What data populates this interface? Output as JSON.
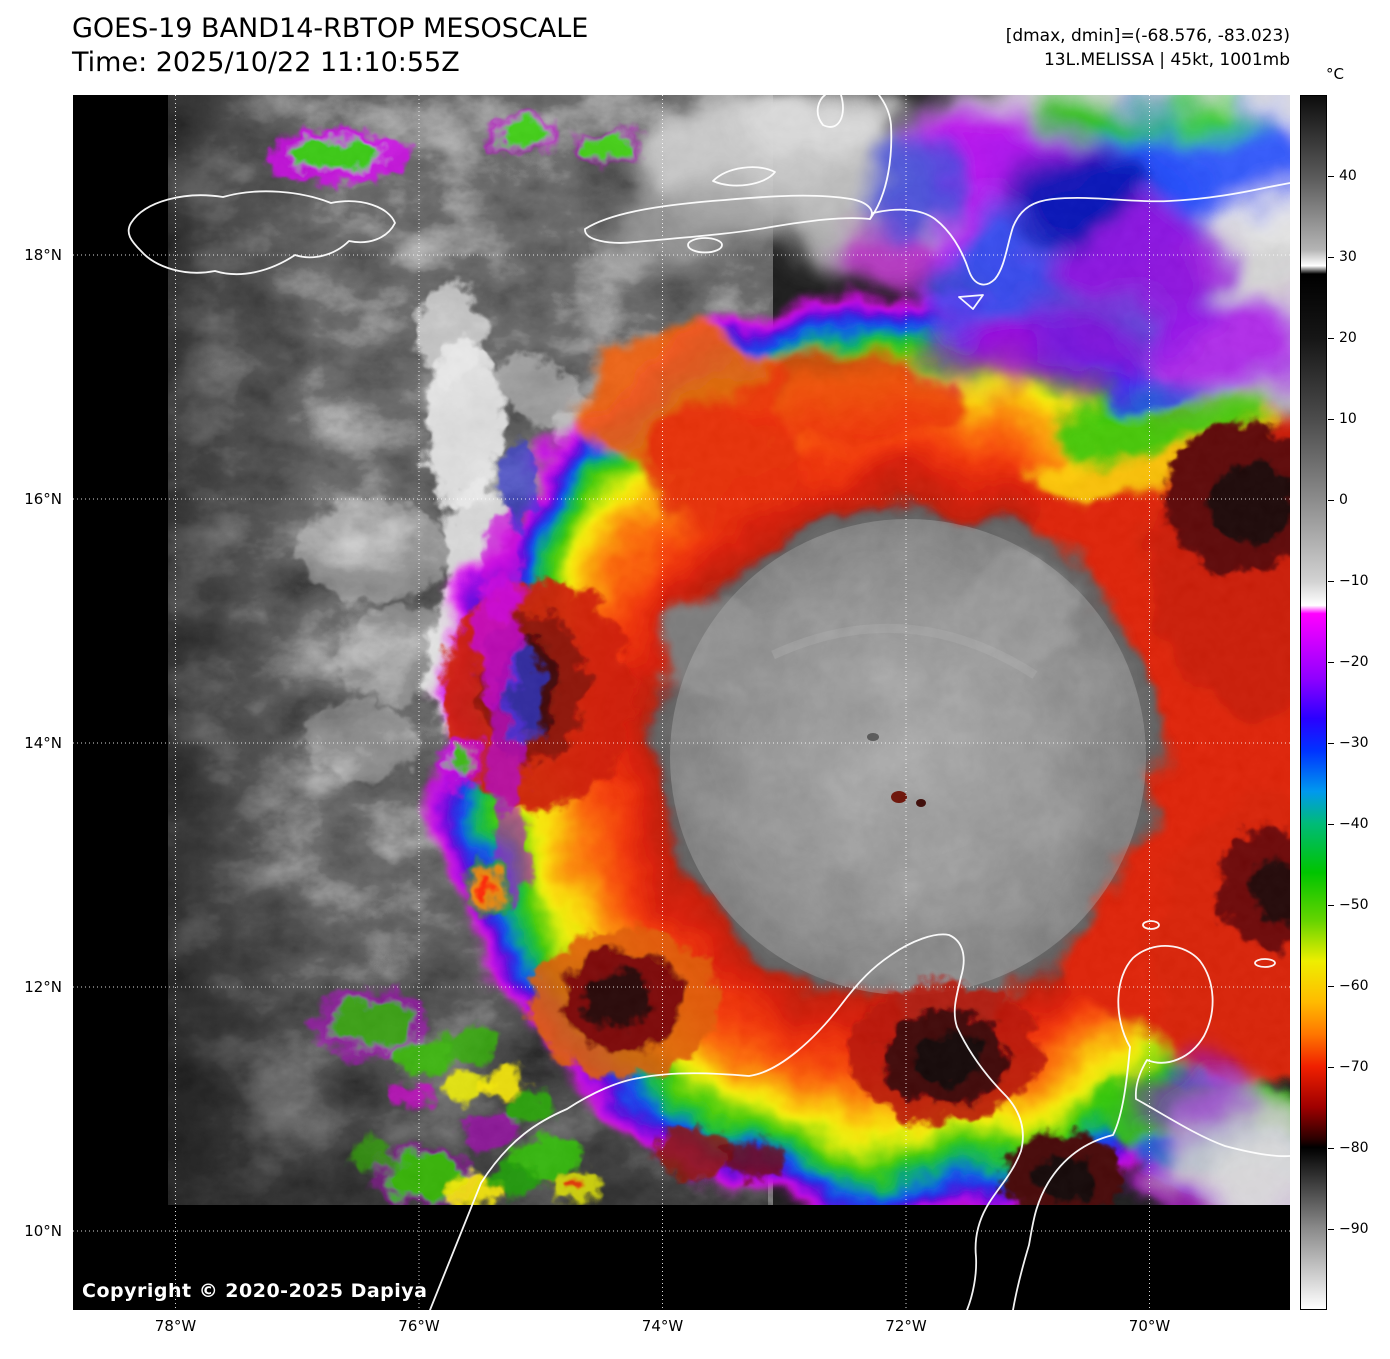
{
  "header": {
    "title": "GOES-19 BAND14-RBTOP MESOSCALE",
    "time": "Time: 2025/10/22 11:10:55Z",
    "dmax_dmin": "[dmax, dmin]=(-68.576, -83.023)",
    "storm_line": "13L.MELISSA | 45kt, 1001mb"
  },
  "watermark": "Copyright © 2020-2025 Dapiya",
  "axes": {
    "lats": [
      {
        "label": "18°N",
        "value": 18
      },
      {
        "label": "16°N",
        "value": 16
      },
      {
        "label": "14°N",
        "value": 14
      },
      {
        "label": "12°N",
        "value": 12
      },
      {
        "label": "10°N",
        "value": 10
      }
    ],
    "lons": [
      {
        "label": "78°W",
        "value": 78
      },
      {
        "label": "76°W",
        "value": 76
      },
      {
        "label": "74°W",
        "value": 74
      },
      {
        "label": "72°W",
        "value": 72
      },
      {
        "label": "70°W",
        "value": 70
      }
    ]
  },
  "colorbar": {
    "unit": "°C",
    "range_c": [
      50,
      -100
    ],
    "ticks": [
      {
        "label": "40",
        "value": 40
      },
      {
        "label": "30",
        "value": 30
      },
      {
        "label": "20",
        "value": 20
      },
      {
        "label": "10",
        "value": 10
      },
      {
        "label": "0",
        "value": 0
      },
      {
        "label": "−10",
        "value": -10
      },
      {
        "label": "−20",
        "value": -20
      },
      {
        "label": "−30",
        "value": -30
      },
      {
        "label": "−40",
        "value": -40
      },
      {
        "label": "−50",
        "value": -50
      },
      {
        "label": "−60",
        "value": -60
      },
      {
        "label": "−70",
        "value": -70
      },
      {
        "label": "−80",
        "value": -80
      },
      {
        "label": "−90",
        "value": -90
      }
    ],
    "stops": [
      {
        "temp": 50,
        "color": "#0d0d0d"
      },
      {
        "temp": 40,
        "color": "#5a5a5a"
      },
      {
        "temp": 31,
        "color": "#b4b4b4"
      },
      {
        "temp": 29,
        "color": "#ffffff"
      },
      {
        "temp": 28,
        "color": "#000000"
      },
      {
        "temp": 20,
        "color": "#161616"
      },
      {
        "temp": 10,
        "color": "#4c4c4c"
      },
      {
        "temp": 0,
        "color": "#8c8c8c"
      },
      {
        "temp": -10,
        "color": "#d2d2d2"
      },
      {
        "temp": -13,
        "color": "#ffffff"
      },
      {
        "temp": -14,
        "color": "#ff00ff"
      },
      {
        "temp": -22,
        "color": "#9000ff"
      },
      {
        "temp": -27,
        "color": "#2a00ff"
      },
      {
        "temp": -31,
        "color": "#0033ff"
      },
      {
        "temp": -36,
        "color": "#0099ee"
      },
      {
        "temp": -40,
        "color": "#00bb77"
      },
      {
        "temp": -46,
        "color": "#00c400"
      },
      {
        "temp": -52,
        "color": "#66d400"
      },
      {
        "temp": -57,
        "color": "#eeee00"
      },
      {
        "temp": -62,
        "color": "#ffbb00"
      },
      {
        "temp": -66,
        "color": "#ff7700"
      },
      {
        "temp": -70,
        "color": "#f02000"
      },
      {
        "temp": -75,
        "color": "#a00000"
      },
      {
        "temp": -79,
        "color": "#2a0000"
      },
      {
        "temp": -80,
        "color": "#000000"
      },
      {
        "temp": -90,
        "color": "#8a8a8a"
      },
      {
        "temp": -100,
        "color": "#ffffff"
      }
    ]
  }
}
